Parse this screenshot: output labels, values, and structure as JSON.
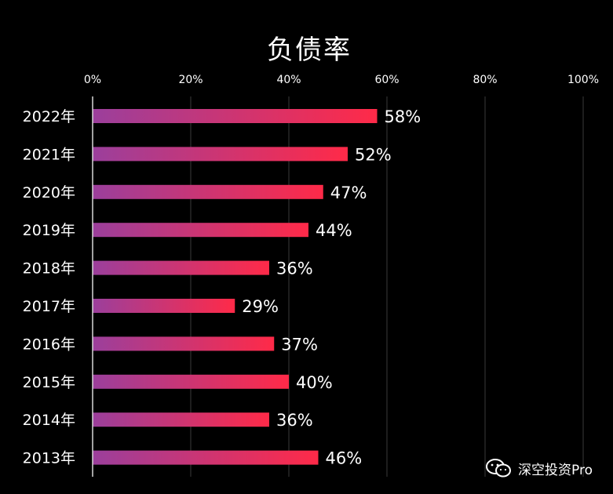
{
  "chart_data": {
    "type": "bar",
    "orientation": "horizontal",
    "title": "负债率",
    "categories": [
      "2022年",
      "2021年",
      "2020年",
      "2019年",
      "2018年",
      "2017年",
      "2016年",
      "2015年",
      "2014年",
      "2013年"
    ],
    "values": [
      58,
      52,
      47,
      44,
      36,
      29,
      37,
      40,
      36,
      46
    ],
    "value_labels": [
      "58%",
      "52%",
      "47%",
      "44%",
      "36%",
      "29%",
      "37%",
      "40%",
      "36%",
      "46%"
    ],
    "x_ticks": [
      "0%",
      "20%",
      "40%",
      "60%",
      "80%",
      "100%"
    ],
    "xlim": [
      0,
      100
    ],
    "x_axis_position": "top",
    "grid": true,
    "bar_gradient": [
      "#9b3f9c",
      "#ff2a48"
    ]
  },
  "watermark": {
    "text": "深空投资Pro",
    "icon": "wechat-icon"
  }
}
